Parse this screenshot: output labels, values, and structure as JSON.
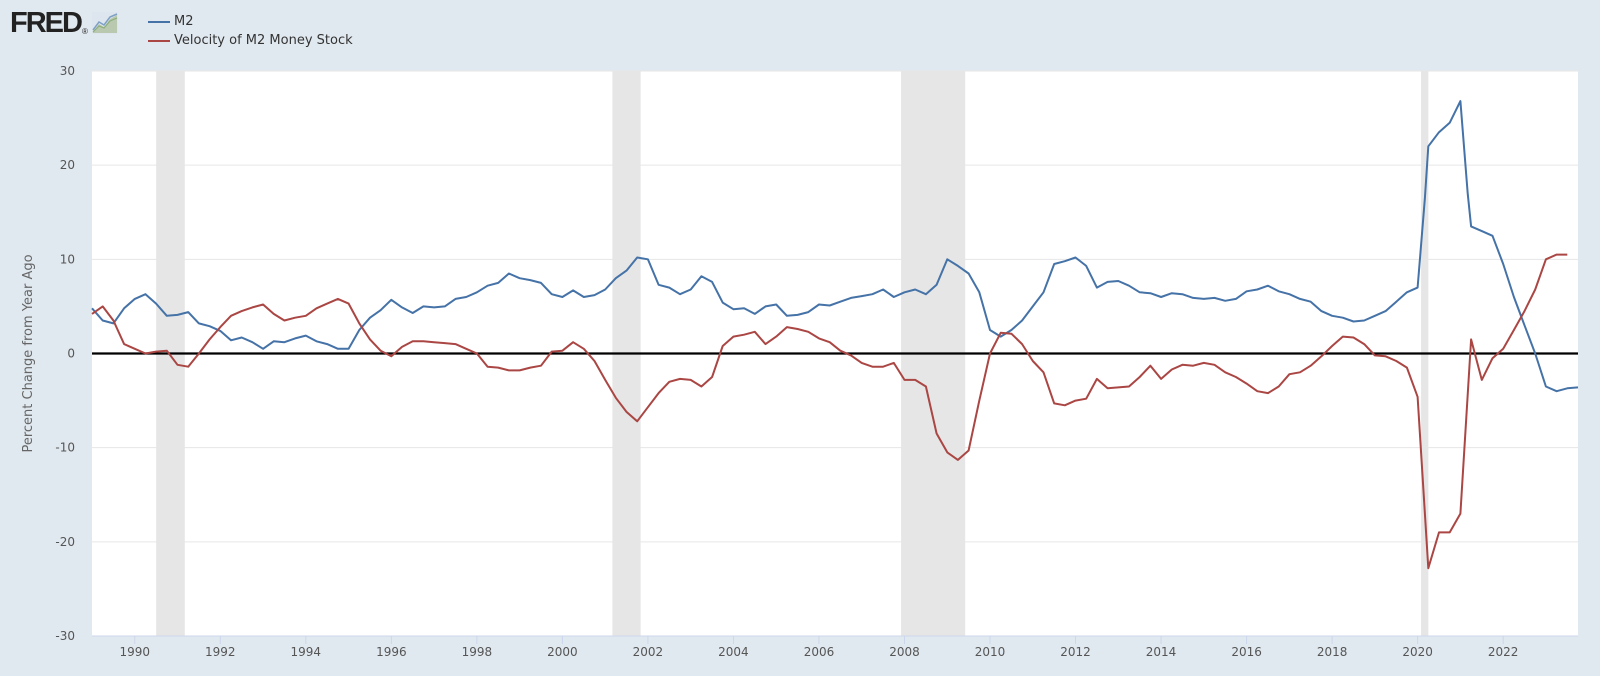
{
  "branding": {
    "logo_text": "FRED",
    "logo_mark": "®",
    "logo_icon": "line-chart-icon"
  },
  "legend": [
    {
      "label": "M2",
      "color": "#4572a7"
    },
    {
      "label": "Velocity of M2 Money Stock",
      "color": "#aa4643"
    }
  ],
  "chart_data": {
    "type": "line",
    "title": "",
    "xlabel": "",
    "ylabel": "Percent Change from Year Ago",
    "xlim": [
      1989.0,
      2023.75
    ],
    "ylim": [
      -30,
      30
    ],
    "x_ticks": [
      "1990",
      "1992",
      "1994",
      "1996",
      "1998",
      "2000",
      "2002",
      "2004",
      "2006",
      "2008",
      "2010",
      "2012",
      "2014",
      "2016",
      "2018",
      "2020",
      "2022"
    ],
    "y_ticks": [
      "30",
      "20",
      "10",
      "0",
      "-10",
      "-20",
      "-30"
    ],
    "grid": true,
    "zero_line": true,
    "recessions": [
      [
        1990.5,
        1991.17
      ],
      [
        2001.17,
        2001.83
      ],
      [
        2007.92,
        2009.42
      ],
      [
        2020.08,
        2020.25
      ]
    ],
    "series": [
      {
        "name": "M2",
        "color": "#4572a7",
        "x": [
          1989.0,
          1989.25,
          1989.5,
          1989.75,
          1990.0,
          1990.25,
          1990.5,
          1990.75,
          1991.0,
          1991.25,
          1991.5,
          1991.75,
          1992.0,
          1992.25,
          1992.5,
          1992.75,
          1993.0,
          1993.25,
          1993.5,
          1993.75,
          1994.0,
          1994.25,
          1994.5,
          1994.75,
          1995.0,
          1995.25,
          1995.5,
          1995.75,
          1996.0,
          1996.25,
          1996.5,
          1996.75,
          1997.0,
          1997.25,
          1997.5,
          1997.75,
          1998.0,
          1998.25,
          1998.5,
          1998.75,
          1999.0,
          1999.25,
          1999.5,
          1999.75,
          2000.0,
          2000.25,
          2000.5,
          2000.75,
          2001.0,
          2001.25,
          2001.5,
          2001.75,
          2002.0,
          2002.25,
          2002.5,
          2002.75,
          2003.0,
          2003.25,
          2003.5,
          2003.75,
          2004.0,
          2004.25,
          2004.5,
          2004.75,
          2005.0,
          2005.25,
          2005.5,
          2005.75,
          2006.0,
          2006.25,
          2006.5,
          2006.75,
          2007.0,
          2007.25,
          2007.5,
          2007.75,
          2008.0,
          2008.25,
          2008.5,
          2008.75,
          2009.0,
          2009.25,
          2009.5,
          2009.75,
          2010.0,
          2010.25,
          2010.5,
          2010.75,
          2011.0,
          2011.25,
          2011.5,
          2011.75,
          2012.0,
          2012.25,
          2012.5,
          2012.75,
          2013.0,
          2013.25,
          2013.5,
          2013.75,
          2014.0,
          2014.25,
          2014.5,
          2014.75,
          2015.0,
          2015.25,
          2015.5,
          2015.75,
          2016.0,
          2016.25,
          2016.5,
          2016.75,
          2017.0,
          2017.25,
          2017.5,
          2017.75,
          2018.0,
          2018.25,
          2018.5,
          2018.75,
          2019.0,
          2019.25,
          2019.5,
          2019.75,
          2020.0,
          2020.17,
          2020.25,
          2020.5,
          2020.75,
          2021.0,
          2021.17,
          2021.25,
          2021.5,
          2021.75,
          2022.0,
          2022.25,
          2022.5,
          2022.75,
          2023.0,
          2023.25,
          2023.5,
          2023.75
        ],
        "values": [
          4.8,
          3.5,
          3.2,
          4.8,
          5.8,
          6.3,
          5.3,
          4.0,
          4.1,
          4.4,
          3.2,
          2.9,
          2.4,
          1.4,
          1.7,
          1.2,
          0.5,
          1.3,
          1.2,
          1.6,
          1.9,
          1.3,
          1.0,
          0.5,
          0.5,
          2.5,
          3.8,
          4.6,
          5.7,
          4.9,
          4.3,
          5.0,
          4.9,
          5.0,
          5.8,
          6.0,
          6.5,
          7.2,
          7.5,
          8.5,
          8.0,
          7.8,
          7.5,
          6.3,
          6.0,
          6.7,
          6.0,
          6.2,
          6.8,
          8.0,
          8.8,
          10.2,
          10.0,
          7.3,
          7.0,
          6.3,
          6.8,
          8.2,
          7.6,
          5.4,
          4.7,
          4.8,
          4.2,
          5.0,
          5.2,
          4.0,
          4.1,
          4.4,
          5.2,
          5.1,
          5.5,
          5.9,
          6.1,
          6.3,
          6.8,
          6.0,
          6.5,
          6.8,
          6.3,
          7.3,
          10.0,
          9.3,
          8.5,
          6.5,
          2.5,
          1.8,
          2.5,
          3.5,
          5.0,
          6.5,
          9.5,
          9.8,
          10.2,
          9.3,
          7.0,
          7.6,
          7.7,
          7.2,
          6.5,
          6.4,
          6.0,
          6.4,
          6.3,
          5.9,
          5.8,
          5.9,
          5.6,
          5.8,
          6.6,
          6.8,
          7.2,
          6.6,
          6.3,
          5.8,
          5.5,
          4.5,
          4.0,
          3.8,
          3.4,
          3.5,
          4.0,
          4.5,
          5.5,
          6.5,
          7.0,
          16.5,
          22.0,
          23.5,
          24.5,
          26.8,
          17.0,
          13.5,
          13.0,
          12.5,
          9.5,
          6.0,
          3.0,
          0.0,
          -3.5,
          -4.0,
          -3.7,
          -3.6
        ]
      },
      {
        "name": "Velocity of M2 Money Stock",
        "color": "#aa4643",
        "x": [
          1989.0,
          1989.25,
          1989.5,
          1989.75,
          1990.0,
          1990.25,
          1990.5,
          1990.75,
          1991.0,
          1991.25,
          1991.5,
          1991.75,
          1992.0,
          1992.25,
          1992.5,
          1992.75,
          1993.0,
          1993.25,
          1993.5,
          1993.75,
          1994.0,
          1994.25,
          1994.5,
          1994.75,
          1995.0,
          1995.25,
          1995.5,
          1995.75,
          1996.0,
          1996.25,
          1996.5,
          1996.75,
          1997.0,
          1997.25,
          1997.5,
          1997.75,
          1998.0,
          1998.25,
          1998.5,
          1998.75,
          1999.0,
          1999.25,
          1999.5,
          1999.75,
          2000.0,
          2000.25,
          2000.5,
          2000.75,
          2001.0,
          2001.25,
          2001.5,
          2001.75,
          2002.0,
          2002.25,
          2002.5,
          2002.75,
          2003.0,
          2003.25,
          2003.5,
          2003.75,
          2004.0,
          2004.25,
          2004.5,
          2004.75,
          2005.0,
          2005.25,
          2005.5,
          2005.75,
          2006.0,
          2006.25,
          2006.5,
          2006.75,
          2007.0,
          2007.25,
          2007.5,
          2007.75,
          2008.0,
          2008.25,
          2008.5,
          2008.75,
          2009.0,
          2009.25,
          2009.5,
          2009.75,
          2010.0,
          2010.25,
          2010.5,
          2010.75,
          2011.0,
          2011.25,
          2011.5,
          2011.75,
          2012.0,
          2012.25,
          2012.5,
          2012.75,
          2013.0,
          2013.25,
          2013.5,
          2013.75,
          2014.0,
          2014.25,
          2014.5,
          2014.75,
          2015.0,
          2015.25,
          2015.5,
          2015.75,
          2016.0,
          2016.25,
          2016.5,
          2016.75,
          2017.0,
          2017.25,
          2017.5,
          2017.75,
          2018.0,
          2018.25,
          2018.5,
          2018.75,
          2019.0,
          2019.25,
          2019.5,
          2019.75,
          2020.0,
          2020.25,
          2020.5,
          2020.75,
          2021.0,
          2021.25,
          2021.5,
          2021.75,
          2022.0,
          2022.25,
          2022.5,
          2022.75,
          2023.0,
          2023.25,
          2023.5
        ],
        "values": [
          4.2,
          5.0,
          3.5,
          1.0,
          0.5,
          0.0,
          0.2,
          0.3,
          -1.2,
          -1.4,
          0.0,
          1.5,
          2.8,
          4.0,
          4.5,
          4.9,
          5.2,
          4.2,
          3.5,
          3.8,
          4.0,
          4.8,
          5.3,
          5.8,
          5.3,
          3.2,
          1.5,
          0.3,
          -0.3,
          0.7,
          1.3,
          1.3,
          1.2,
          1.1,
          1.0,
          0.5,
          0.0,
          -1.4,
          -1.5,
          -1.8,
          -1.8,
          -1.5,
          -1.3,
          0.2,
          0.3,
          1.2,
          0.5,
          -0.8,
          -2.8,
          -4.7,
          -6.2,
          -7.2,
          -5.7,
          -4.2,
          -3.0,
          -2.7,
          -2.8,
          -3.5,
          -2.5,
          0.8,
          1.8,
          2.0,
          2.3,
          1.0,
          1.8,
          2.8,
          2.6,
          2.3,
          1.6,
          1.2,
          0.3,
          -0.2,
          -1.0,
          -1.4,
          -1.4,
          -1.0,
          -2.8,
          -2.8,
          -3.5,
          -8.5,
          -10.5,
          -11.3,
          -10.3,
          -5.0,
          0.0,
          2.2,
          2.1,
          1.0,
          -0.8,
          -2.0,
          -5.3,
          -5.5,
          -5.0,
          -4.8,
          -2.7,
          -3.7,
          -3.6,
          -3.5,
          -2.5,
          -1.3,
          -2.7,
          -1.7,
          -1.2,
          -1.3,
          -1.0,
          -1.2,
          -2.0,
          -2.5,
          -3.2,
          -4.0,
          -4.2,
          -3.5,
          -2.2,
          -2.0,
          -1.3,
          -0.3,
          0.8,
          1.8,
          1.7,
          1.0,
          -0.2,
          -0.3,
          -0.8,
          -1.5,
          -4.6,
          -22.8,
          -19.0,
          -19.0,
          -17.0,
          1.5,
          -2.8,
          -0.5,
          0.5,
          2.5,
          4.5,
          6.8,
          10.0,
          10.5,
          10.5
        ]
      }
    ]
  }
}
